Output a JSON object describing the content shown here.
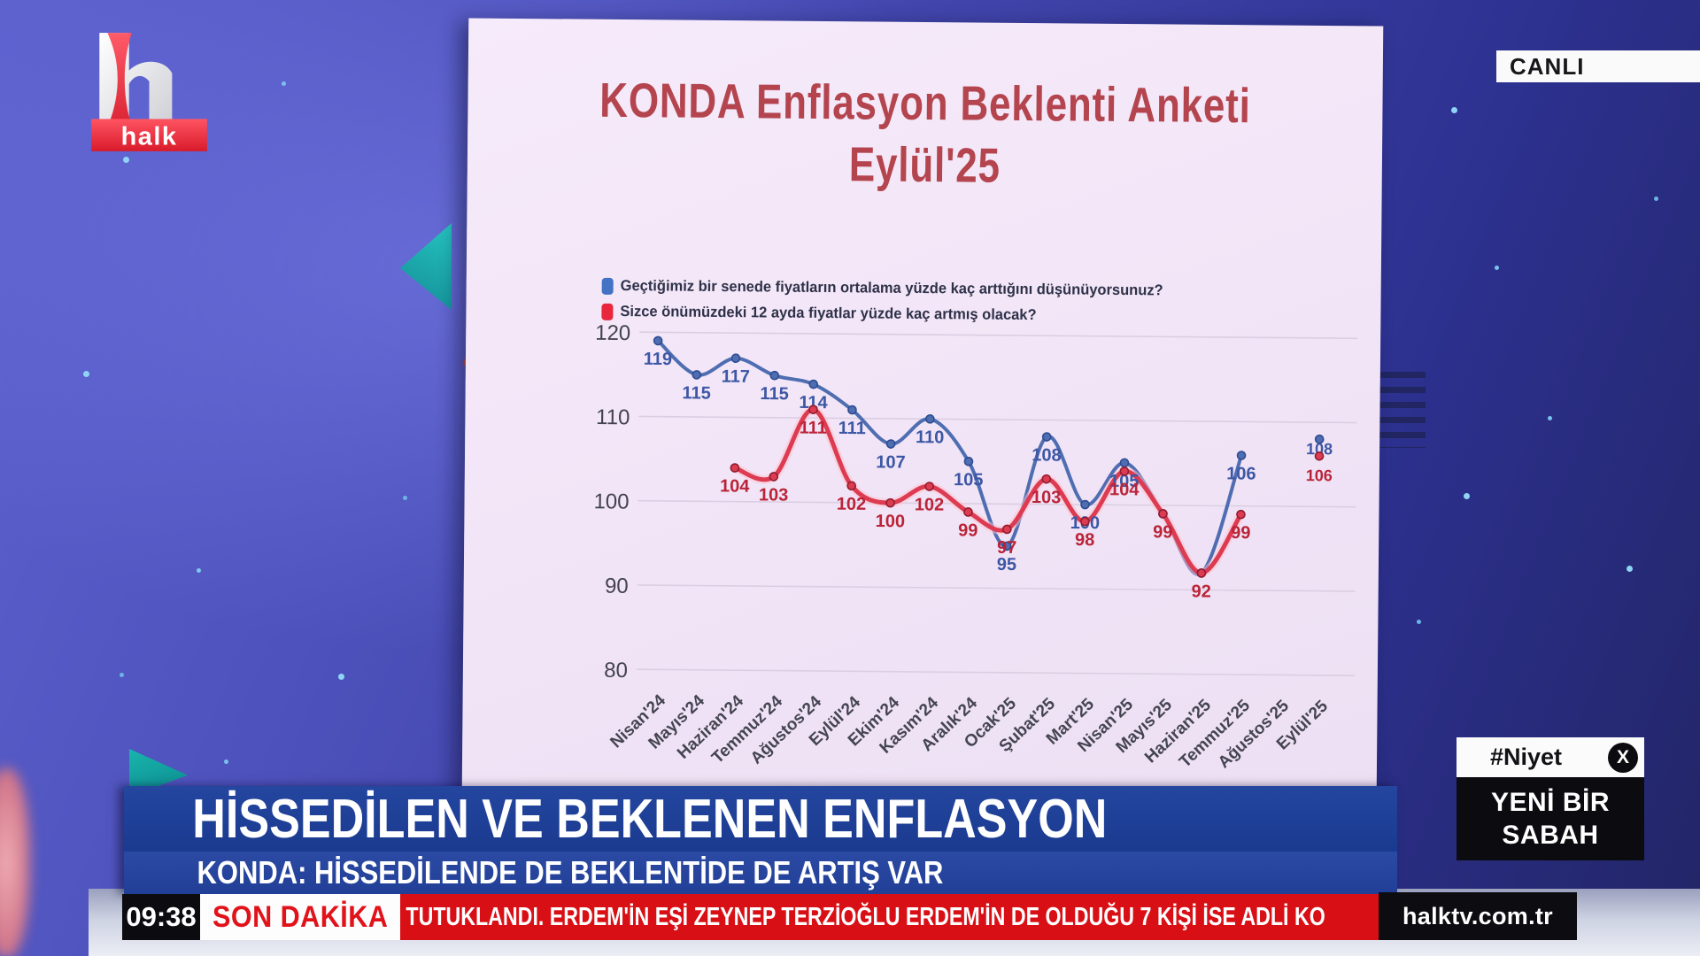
{
  "broadcast": {
    "logo": "halk",
    "live_badge": "CANLI",
    "clock": "09:38",
    "breaking_tag": "SON DAKİKA",
    "ticker_text": "TUTUKLANDI. ERDEM'İN EŞİ ZEYNEP TERZİOĞLU ERDEM'İN DE OLDUĞU 7 KİŞİ İSE ADLİ KO",
    "website": "halktv.com.tr",
    "hashtag": "#Niyet",
    "program": {
      "line1": "YENİ BİR",
      "line2": "SABAH"
    },
    "headline": "HİSSEDİLEN VE BEKLENEN ENFLASYON",
    "subheadline": "KONDA: HİSSEDİLENDE DE BEKLENTİDE DE ARTIŞ VAR"
  },
  "slide": {
    "title_line1": "KONDA Enflasyon Beklenti Anketi",
    "title_line2": "Eylül'25"
  },
  "chart_data": {
    "type": "line",
    "title": "KONDA Enflasyon Beklenti Anketi Eylül'25",
    "categories": [
      "Nisan'24",
      "Mayıs'24",
      "Haziran'24",
      "Temmuz'24",
      "Ağustos'24",
      "Eylül'24",
      "Ekim'24",
      "Kasım'24",
      "Aralık'24",
      "Ocak'25",
      "Şubat'25",
      "Mart'25",
      "Nisan'25",
      "Mayıs'25",
      "Haziran'25",
      "Temmuz'25",
      "Ağustos'25",
      "Eylül'25"
    ],
    "series": [
      {
        "name": "Geçtiğimiz bir senede fiyatların ortalama yüzde kaç arttığını düşünüyorsunuz?",
        "color": "#4f6db1",
        "label_color": "#3d57a5",
        "values": [
          119,
          115,
          117,
          115,
          114,
          111,
          107,
          110,
          105,
          95,
          108,
          100,
          105,
          99,
          92,
          106,
          null,
          108
        ],
        "label_hidden_indices": [
          13,
          14
        ]
      },
      {
        "name": "Sizce önümüzdeki 12 ayda fiyatlar yüzde kaç artmış olacak?",
        "color": "#dd3b52",
        "label_color": "#bb2438",
        "values": [
          null,
          null,
          104,
          103,
          111,
          102,
          100,
          102,
          99,
          97,
          103,
          98,
          104,
          99,
          92,
          99,
          null,
          106
        ],
        "label_hidden_indices": []
      }
    ],
    "ylim": [
      80,
      120
    ],
    "yticks": [
      120,
      110,
      100,
      90,
      80
    ],
    "grid": true,
    "legend_position": "top-left"
  }
}
